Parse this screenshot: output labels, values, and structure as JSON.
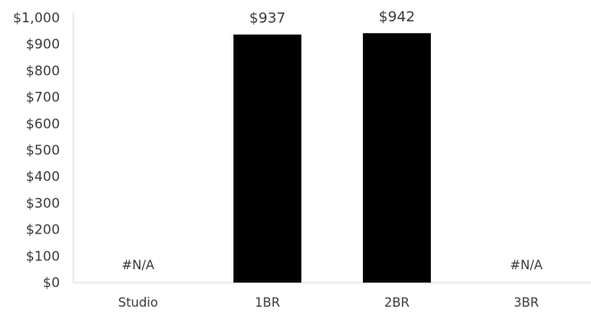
{
  "chart_data": {
    "type": "bar",
    "title": "",
    "xlabel": "",
    "ylabel": "",
    "categories": [
      "Studio",
      "1BR",
      "2BR",
      "3BR"
    ],
    "values": [
      null,
      937,
      942,
      null
    ],
    "data_labels": [
      "#N/A",
      "$937",
      "$942",
      "#N/A"
    ],
    "ylim": [
      0,
      1000
    ],
    "y_ticks": [
      0,
      100,
      200,
      300,
      400,
      500,
      600,
      700,
      800,
      900,
      1000
    ],
    "y_tick_labels": [
      "$0",
      "$100",
      "$200",
      "$300",
      "$400",
      "$500",
      "$600",
      "$700",
      "$800",
      "$900",
      "$1,000"
    ],
    "bar_color": "#000000",
    "grid": false,
    "legend": "none"
  }
}
